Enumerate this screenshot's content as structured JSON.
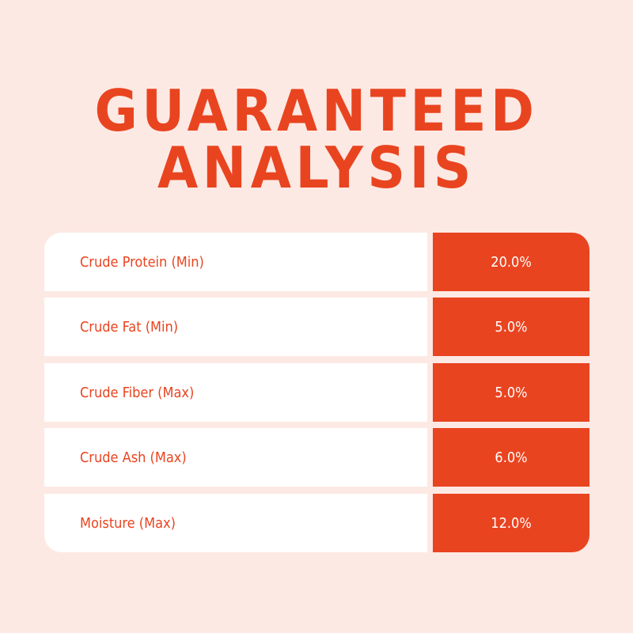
{
  "title": {
    "line1": "GUARANTEED",
    "line2": "ANALYSIS"
  },
  "colors": {
    "background": "#fde9e3",
    "accent": "#e94420",
    "cell": "#ffffff"
  },
  "rows": [
    {
      "label": "Crude Protein (Min)",
      "value": "20.0%"
    },
    {
      "label": "Crude Fat (Min)",
      "value": "5.0%"
    },
    {
      "label": "Crude Fiber (Max)",
      "value": "5.0%"
    },
    {
      "label": "Crude Ash (Max)",
      "value": "6.0%"
    },
    {
      "label": "Moisture (Max)",
      "value": "12.0%"
    }
  ]
}
